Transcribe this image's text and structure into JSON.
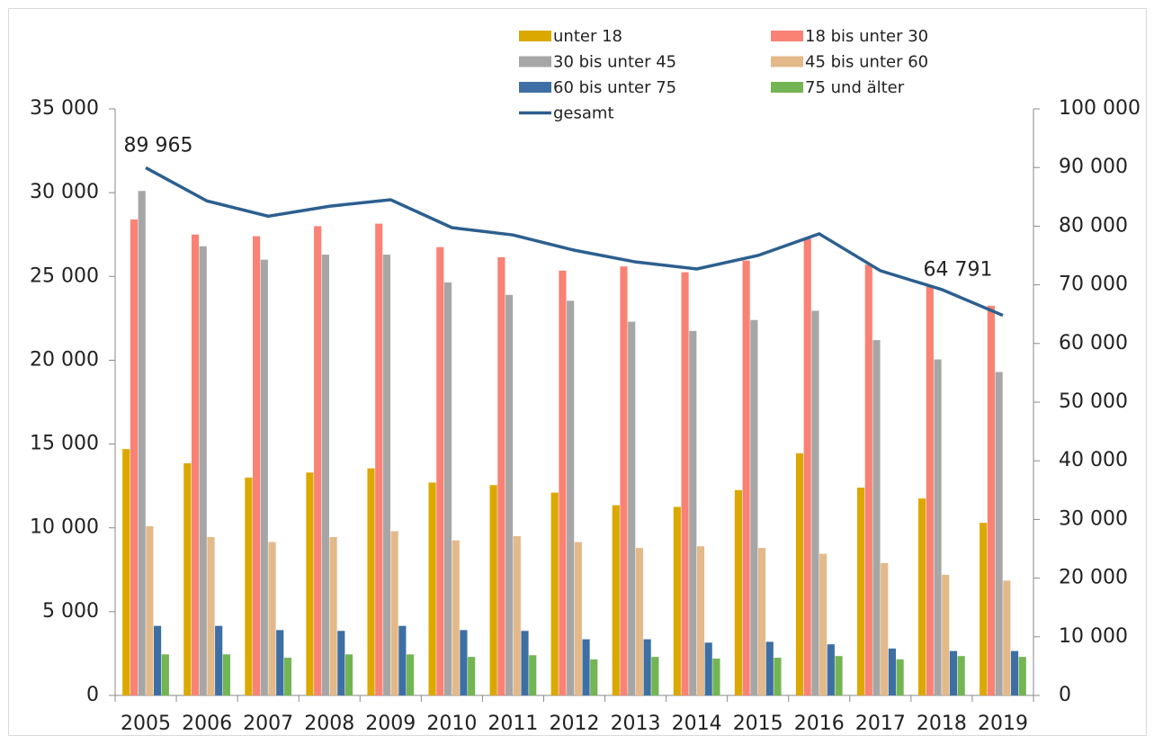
{
  "chart_data": {
    "type": "bar",
    "categories": [
      "2005",
      "2006",
      "2007",
      "2008",
      "2009",
      "2010",
      "2011",
      "2012",
      "2013",
      "2014",
      "2015",
      "2016",
      "2017",
      "2018",
      "2019"
    ],
    "series": [
      {
        "name": "unter 18",
        "color": "#dba800",
        "values": [
          14700,
          13850,
          13000,
          13300,
          13550,
          12700,
          12550,
          12100,
          11350,
          11250,
          12250,
          14450,
          12400,
          11750,
          10300
        ]
      },
      {
        "name": "18 bis unter 30",
        "color": "#f98274",
        "values": [
          28400,
          27500,
          27400,
          28000,
          28150,
          26750,
          26150,
          25350,
          25600,
          25250,
          25950,
          27250,
          25700,
          24450,
          23250
        ]
      },
      {
        "name": "30 bis unter 45",
        "color": "#a6a6a6",
        "values": [
          30100,
          26800,
          26000,
          26300,
          26300,
          24650,
          23900,
          23550,
          22300,
          21750,
          22400,
          22950,
          21200,
          20050,
          19300
        ]
      },
      {
        "name": "45 bis unter 60",
        "color": "#e3b98a",
        "values": [
          10100,
          9450,
          9150,
          9450,
          9800,
          9250,
          9500,
          9150,
          8800,
          8900,
          8800,
          8450,
          7900,
          7200,
          6850
        ]
      },
      {
        "name": "60 bis unter 75",
        "color": "#3d6fa4",
        "values": [
          4150,
          4150,
          3900,
          3850,
          4150,
          3900,
          3850,
          3350,
          3350,
          3150,
          3200,
          3050,
          2800,
          2650,
          2650
        ]
      },
      {
        "name": "75 und älter",
        "color": "#73b553",
        "values": [
          2450,
          2450,
          2250,
          2450,
          2450,
          2300,
          2400,
          2150,
          2300,
          2200,
          2250,
          2350,
          2150,
          2350,
          2300
        ]
      },
      {
        "name": "gesamt",
        "color": "#2c5f8f",
        "type": "line",
        "axis": "y2",
        "values": [
          89965,
          84300,
          81700,
          83400,
          84500,
          79750,
          78500,
          75900,
          73900,
          72700,
          75000,
          78700,
          72400,
          69200,
          64791
        ],
        "value_labels": [
          "89 965",
          null,
          null,
          null,
          null,
          null,
          null,
          null,
          null,
          null,
          null,
          null,
          null,
          null,
          "64 791"
        ]
      }
    ],
    "ylim": [
      0,
      35000
    ],
    "yticks": [
      0,
      {
        "value": 5000,
        "label": "5 000"
      },
      {
        "value": 10000,
        "label": "10 000"
      },
      {
        "value": 15000,
        "label": "15 000"
      },
      {
        "value": 20000,
        "label": "20 000"
      },
      {
        "value": 25000,
        "label": "25 000"
      },
      {
        "value": 30000,
        "label": "30 000"
      },
      {
        "value": 35000,
        "label": "35 000"
      }
    ],
    "y2lim": [
      0,
      100000
    ],
    "y2ticks": [
      0,
      {
        "value": 10000,
        "label": "10 000"
      },
      {
        "value": 20000,
        "label": "20 000"
      },
      {
        "value": 30000,
        "label": "30 000"
      },
      {
        "value": 40000,
        "label": "40 000"
      },
      {
        "value": 50000,
        "label": "50 000"
      },
      {
        "value": 60000,
        "label": "60 000"
      },
      {
        "value": 70000,
        "label": "70 000"
      },
      {
        "value": 80000,
        "label": "80 000"
      },
      {
        "value": 90000,
        "label": "90 000"
      },
      {
        "value": 100000,
        "label": "100 000"
      }
    ],
    "grid": false
  }
}
